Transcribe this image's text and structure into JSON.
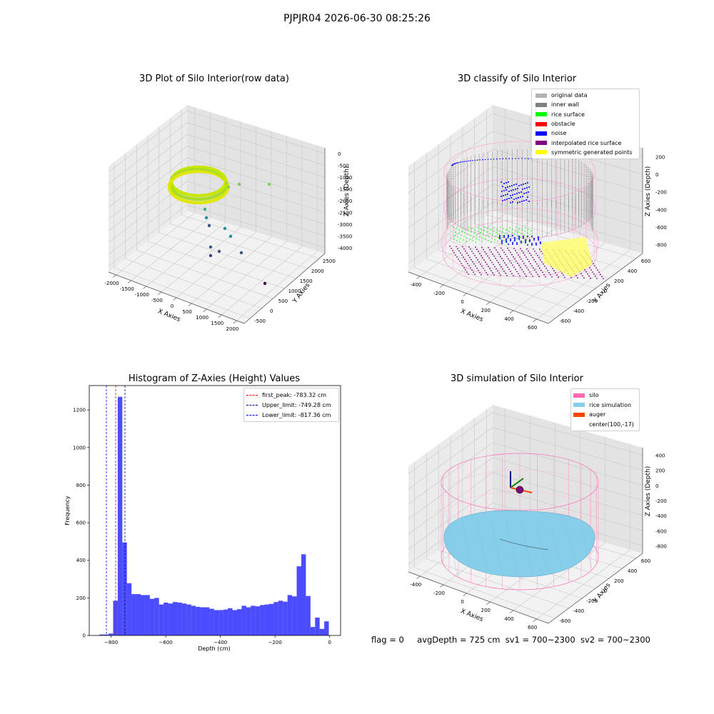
{
  "figure": {
    "suptitle": "PJPJR04 2026-06-30 08:25:26"
  },
  "panel_raw": {
    "title": "3D Plot of Silo Interior(row data)",
    "xlabel": "X Axies",
    "ylabel": "Y Axies",
    "zlabel": "Z Axies (Depth)",
    "x_ticks": [
      "-2000",
      "-1500",
      "-1000",
      "-500",
      "0",
      "500",
      "1000",
      "1500",
      "2000"
    ],
    "y_ticks": [
      "-500",
      "0",
      "500",
      "1000",
      "1500",
      "2000",
      "2500"
    ],
    "z_ticks": [
      "0",
      "-500",
      "-1000",
      "-1500",
      "-2000",
      "-2500",
      "-3000",
      "-3500",
      "-4000"
    ]
  },
  "panel_classify": {
    "title": "3D classify of Silo Interior",
    "xlabel": "X Axies",
    "ylabel": "Y Axies",
    "zlabel": "Z Axies (Depth)",
    "x_ticks": [
      "-400",
      "-200",
      "0",
      "200",
      "400",
      "600"
    ],
    "y_ticks": [
      "-600",
      "-400",
      "-200",
      "0",
      "200",
      "400",
      "600"
    ],
    "z_ticks": [
      "200",
      "0",
      "-200",
      "-400",
      "-600",
      "-800"
    ],
    "legend": [
      {
        "label": "original data",
        "color": "#b3b3b3"
      },
      {
        "label": "inner wall",
        "color": "#808080"
      },
      {
        "label": "rice surface",
        "color": "#00ff00"
      },
      {
        "label": "obstacle",
        "color": "#ff0000"
      },
      {
        "label": "noise",
        "color": "#0000ff"
      },
      {
        "label": "interpolated rice surface",
        "color": "#800080"
      },
      {
        "label": "symmetric generated points",
        "color": "#ffff00"
      }
    ],
    "legend_extra_tick": "0"
  },
  "panel_sim": {
    "title": "3D simulation of Silo Interior",
    "xlabel": "X Axies",
    "ylabel": "Y Axies",
    "zlabel": "Z Axies (Depth)",
    "x_ticks": [
      "-400",
      "-200",
      "0",
      "200",
      "400",
      "600"
    ],
    "y_ticks": [
      "-600",
      "-400",
      "-200",
      "0",
      "200",
      "400",
      "600"
    ],
    "z_ticks": [
      "400",
      "200",
      "0",
      "-200",
      "-400",
      "-600",
      "-800"
    ],
    "legend": [
      {
        "label": "silo",
        "color": "#ff69b4"
      },
      {
        "label": "rice simulation",
        "color": "#87ceeb"
      },
      {
        "label": "auger",
        "color": "#ff4500"
      },
      {
        "label": "center(100,-17)",
        "color": "#ffffff"
      }
    ]
  },
  "info_line": {
    "flag": "flag = 0",
    "avg": "avgDepth = 725 cm",
    "sv1": "sv1 = 700~2300",
    "sv2": "sv2 = 700~2300"
  },
  "chart_data": [
    {
      "type": "bar",
      "title": "Histogram of Z-Axies (Height) Values",
      "xlabel": "Depth (cm)",
      "ylabel": "Frequency",
      "xlim": [
        -880,
        40
      ],
      "ylim": [
        0,
        1330
      ],
      "x_ticks": [
        -800,
        -600,
        -400,
        -200,
        0
      ],
      "y_ticks": [
        0,
        200,
        400,
        600,
        800,
        1000,
        1200
      ],
      "color": "#0000ff",
      "bin_start": -843,
      "bin_width": 16.8,
      "values": [
        5,
        5,
        10,
        185,
        1270,
        495,
        278,
        220,
        220,
        215,
        215,
        195,
        200,
        165,
        175,
        170,
        178,
        175,
        170,
        165,
        158,
        152,
        150,
        150,
        142,
        135,
        135,
        138,
        145,
        135,
        140,
        158,
        150,
        158,
        155,
        162,
        165,
        168,
        178,
        185,
        180,
        215,
        208,
        368,
        432,
        210,
        45,
        95,
        35,
        75
      ],
      "lines": [
        {
          "label": "first_peak: -783.32 cm",
          "x": -783.32,
          "color": "#ff0000"
        },
        {
          "label": "Upper_limit: -749.28 cm",
          "x": -749.28,
          "color": "#00008b"
        },
        {
          "label": "Lower_limit: -817.36 cm",
          "x": -817.36,
          "color": "#0000ff"
        }
      ],
      "legend_position": "upper right"
    }
  ]
}
